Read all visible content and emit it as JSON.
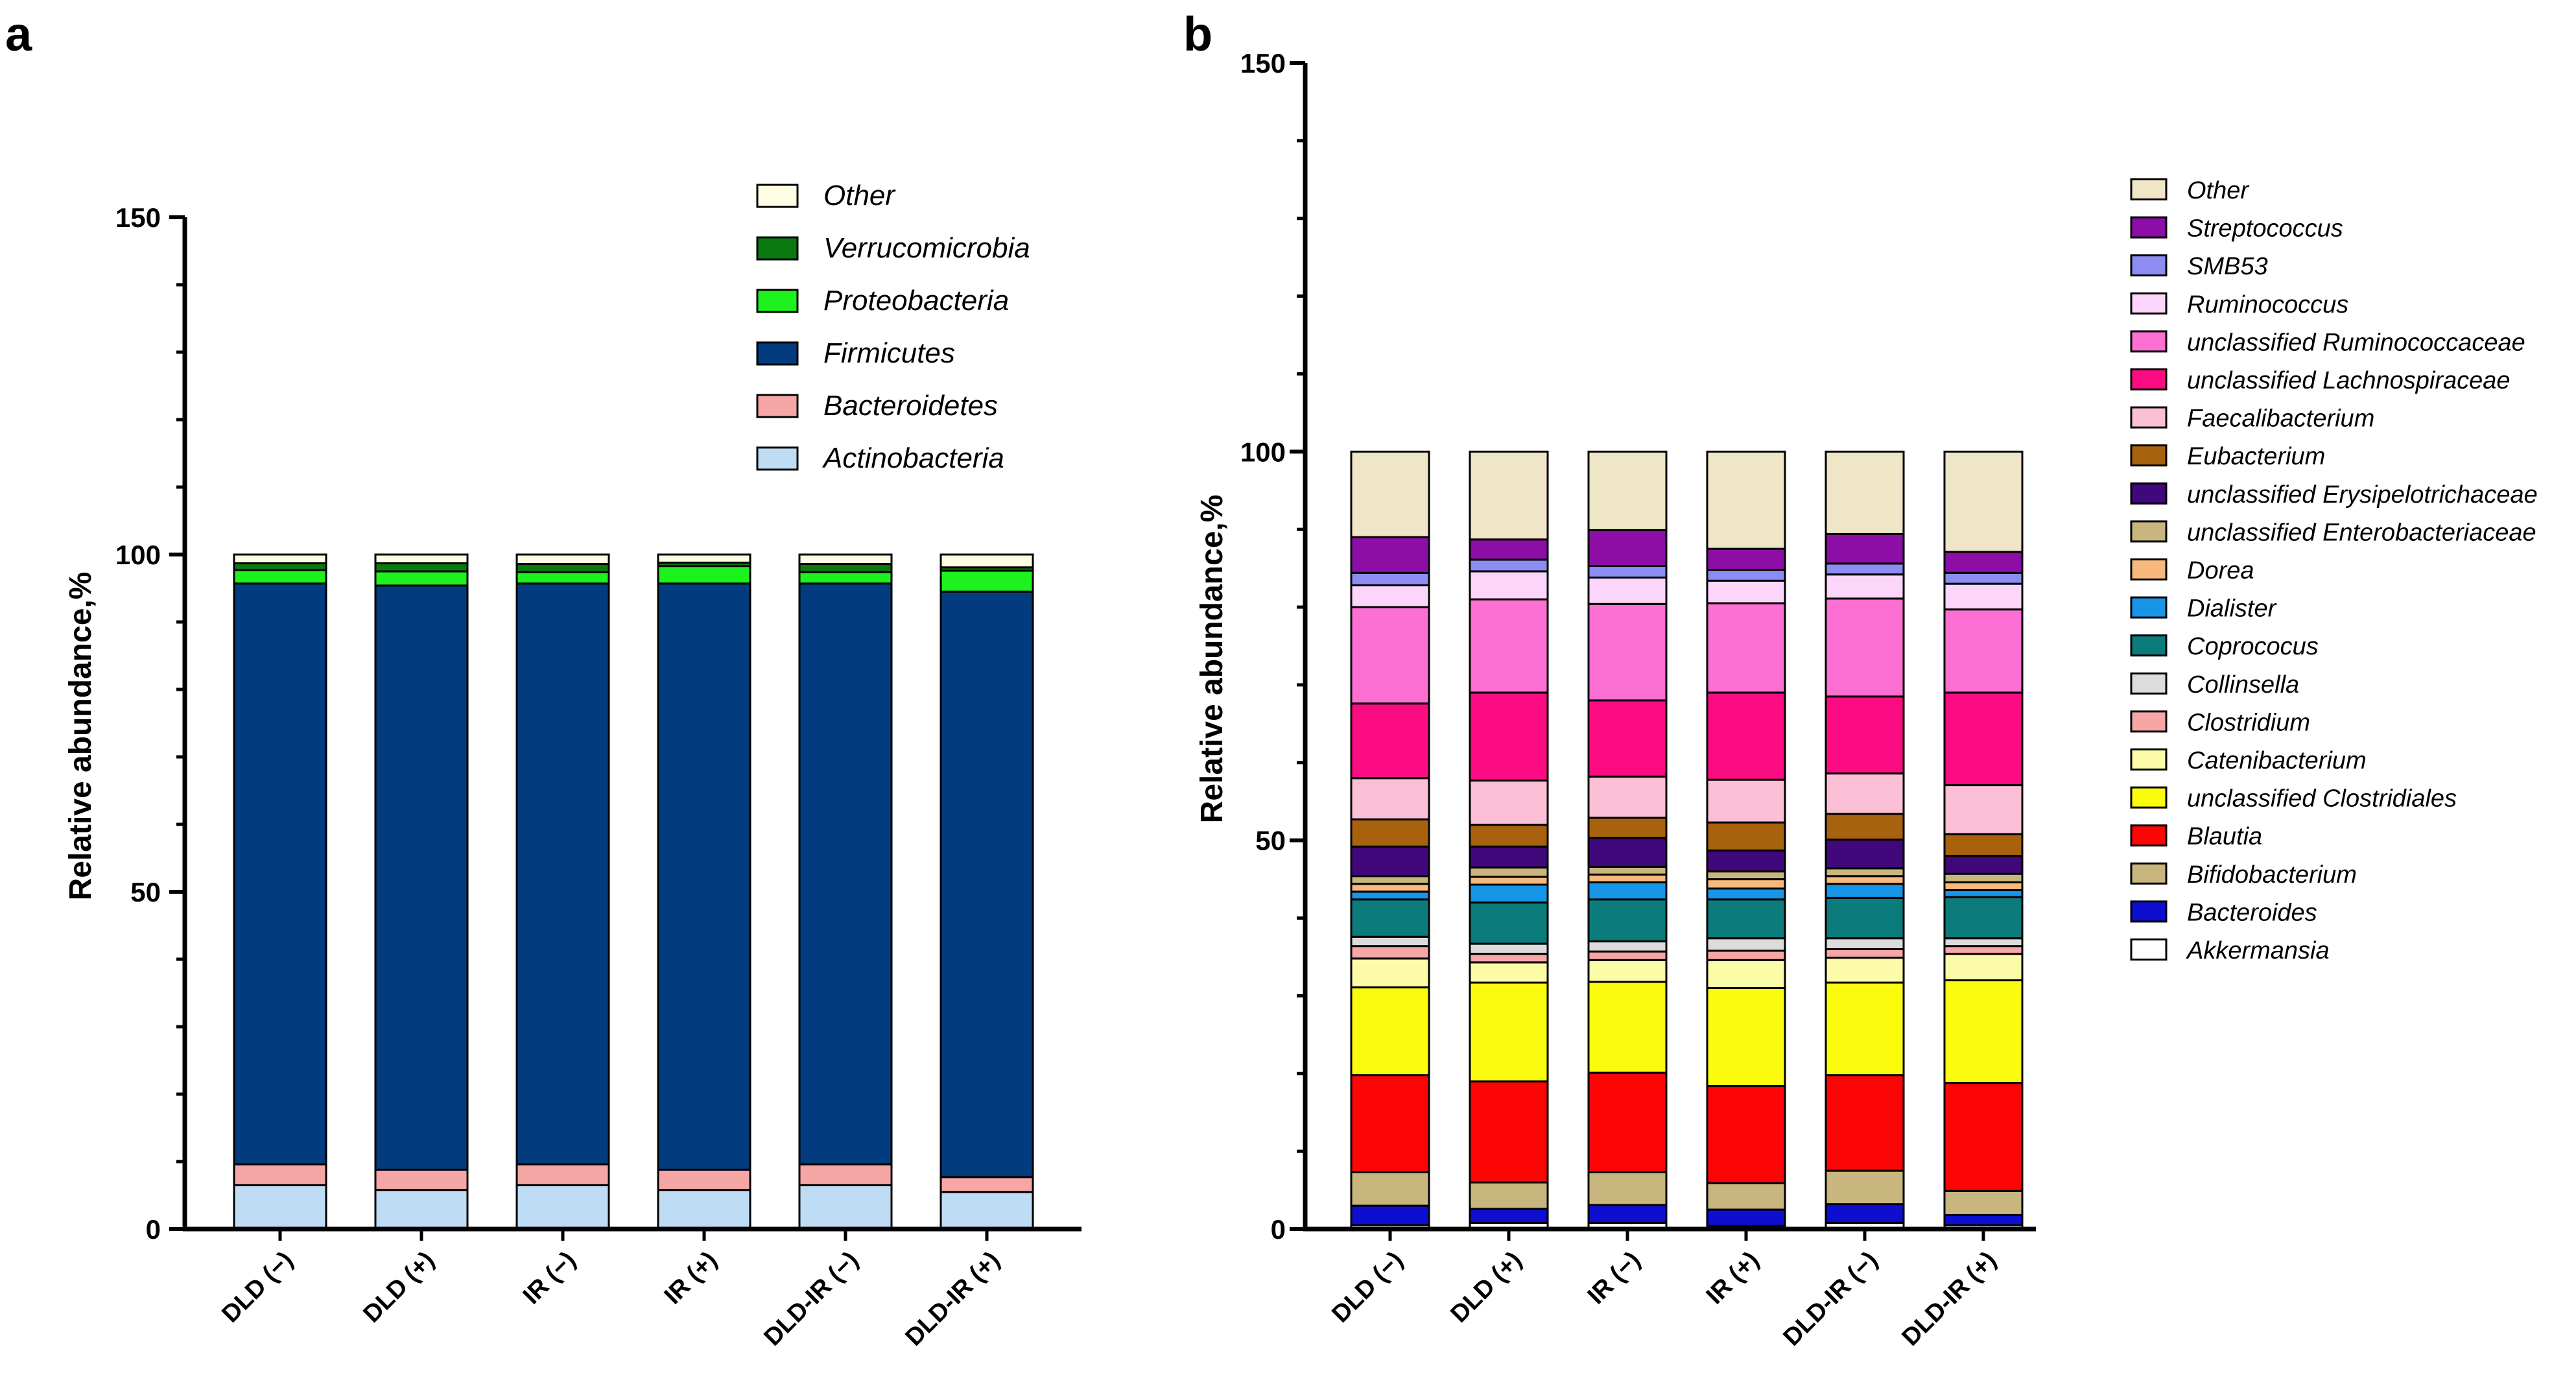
{
  "chart_data": [
    {
      "panel_letter": "a",
      "type": "bar",
      "stacked": true,
      "ylabel": "Relative abundance,%",
      "ylim": [
        0,
        150
      ],
      "yticks": [
        0,
        50,
        100,
        150
      ],
      "categories": [
        "DLD (−)",
        "DLD (+)",
        "IR (−)",
        "IR (+)",
        "DLD-IR (−)",
        "DLD-IR (+)"
      ],
      "legend_position": "top-right",
      "series": [
        {
          "name": "Actinobacteria",
          "color": "#bfdcf5",
          "values": [
            6.5,
            5.8,
            6.5,
            5.8,
            6.5,
            5.5
          ]
        },
        {
          "name": "Bacteroidetes",
          "color": "#f7a6a6",
          "values": [
            3.1,
            3.0,
            3.1,
            3.0,
            3.1,
            2.2
          ]
        },
        {
          "name": "Firmicutes",
          "color": "#023c7e",
          "values": [
            86.1,
            86.6,
            86.1,
            86.9,
            86.1,
            86.8
          ]
        },
        {
          "name": "Proteobacteria",
          "color": "#1ef21e",
          "values": [
            2.0,
            2.1,
            1.7,
            2.6,
            1.7,
            3.1
          ]
        },
        {
          "name": "Verrucomicrobia",
          "color": "#0a7a10",
          "values": [
            1.0,
            1.2,
            1.2,
            0.5,
            1.2,
            0.5
          ]
        },
        {
          "name": "Other",
          "color": "#fffde3",
          "values": [
            1.3,
            1.3,
            1.4,
            1.2,
            1.4,
            1.9
          ]
        }
      ]
    },
    {
      "panel_letter": "b",
      "type": "bar",
      "stacked": true,
      "ylabel": "Relative abundance,%",
      "ylim": [
        0,
        150
      ],
      "yticks": [
        0,
        50,
        100,
        150
      ],
      "categories": [
        "DLD (−)",
        "DLD (+)",
        "IR (−)",
        "IR (+)",
        "DLD-IR (−)",
        "DLD-IR (+)"
      ],
      "legend_position": "right",
      "series": [
        {
          "name": "Akkermansia",
          "color": "#ffffff",
          "values": [
            0.5,
            0.8,
            0.8,
            0.4,
            0.8,
            0.5
          ]
        },
        {
          "name": "Bacteroides",
          "color": "#0e0ed0",
          "values": [
            2.5,
            1.8,
            2.3,
            2.1,
            2.4,
            1.3
          ]
        },
        {
          "name": "Bifidobacterium",
          "color": "#c8b67e",
          "values": [
            4.3,
            3.4,
            4.2,
            3.4,
            4.3,
            3.1
          ]
        },
        {
          "name": "Blautia",
          "color": "#fb0505",
          "values": [
            12.5,
            13.0,
            12.8,
            12.5,
            12.3,
            13.9
          ]
        },
        {
          "name": "unclassified Clostridiales",
          "color": "#fbfb0e"
        },
        {
          "name": "Catenibacterium",
          "color": "#fbfba8",
          "values": [
            3.7,
            2.6,
            2.8,
            3.6,
            3.2,
            3.4
          ]
        },
        {
          "name": "Clostridium",
          "color": "#f7a6a6",
          "values": [
            1.6,
            1.1,
            1.1,
            1.2,
            1.1,
            1.0
          ]
        },
        {
          "name": "Collinsella",
          "color": "#dcdcdc",
          "values": [
            1.2,
            1.3,
            1.3,
            1.6,
            1.4,
            1.0
          ]
        },
        {
          "name": "Coprococus",
          "color": "#0b7b7b",
          "values": [
            4.8,
            5.3,
            5.4,
            5.0,
            5.2,
            5.3
          ]
        },
        {
          "name": "Dialister",
          "color": "#1796e8",
          "values": [
            1.0,
            2.3,
            2.2,
            1.4,
            1.8,
            0.9
          ]
        },
        {
          "name": "Dorea",
          "color": "#f8b97c",
          "values": [
            1.0,
            1.0,
            1.0,
            1.2,
            1.0,
            1.0
          ]
        },
        {
          "name": "unclassified Enterobacteriaceae",
          "color": "#c8b67e",
          "values": [
            1.0,
            1.2,
            1.0,
            1.0,
            1.0,
            1.1
          ]
        },
        {
          "name": "unclassified Erysipelotrichaceae",
          "color": "#40087a",
          "values": [
            3.8,
            2.7,
            3.7,
            2.7,
            3.7,
            2.3
          ]
        },
        {
          "name": "Eubacterium",
          "color": "#a8620e",
          "values": [
            3.5,
            2.8,
            2.6,
            3.6,
            3.3,
            2.8
          ]
        },
        {
          "name": "Faecalibacterium",
          "color": "#fbbfd6",
          "values": [
            5.3,
            5.7,
            5.3,
            5.5,
            5.2,
            6.3
          ]
        },
        {
          "name": "unclassified Lachnospiraceae",
          "color": "#fb0c83",
          "values": [
            9.6,
            11.3,
            9.8,
            11.2,
            9.9,
            11.9
          ]
        },
        {
          "name": "unclassified Ruminococcaceae",
          "color": "#fc6fd3",
          "values": [
            12.4,
            12.0,
            12.4,
            11.5,
            12.6,
            10.7
          ]
        },
        {
          "name": "Ruminococcus",
          "color": "#fcd6fa",
          "values": [
            2.8,
            3.6,
            3.4,
            2.9,
            3.1,
            3.3
          ]
        },
        {
          "name": "SMB53",
          "color": "#8c8cf2",
          "values": [
            1.6,
            1.5,
            1.5,
            1.4,
            1.4,
            1.4
          ]
        },
        {
          "name": "Streptococcus",
          "color": "#8c0ea6",
          "values": [
            4.6,
            2.6,
            4.6,
            2.7,
            3.8,
            2.7
          ]
        },
        {
          "name": "Other",
          "color": "#efe5c7",
          "values": [
            11.0,
            11.3,
            10.1,
            12.5,
            10.6,
            12.9
          ]
        }
      ]
    }
  ]
}
